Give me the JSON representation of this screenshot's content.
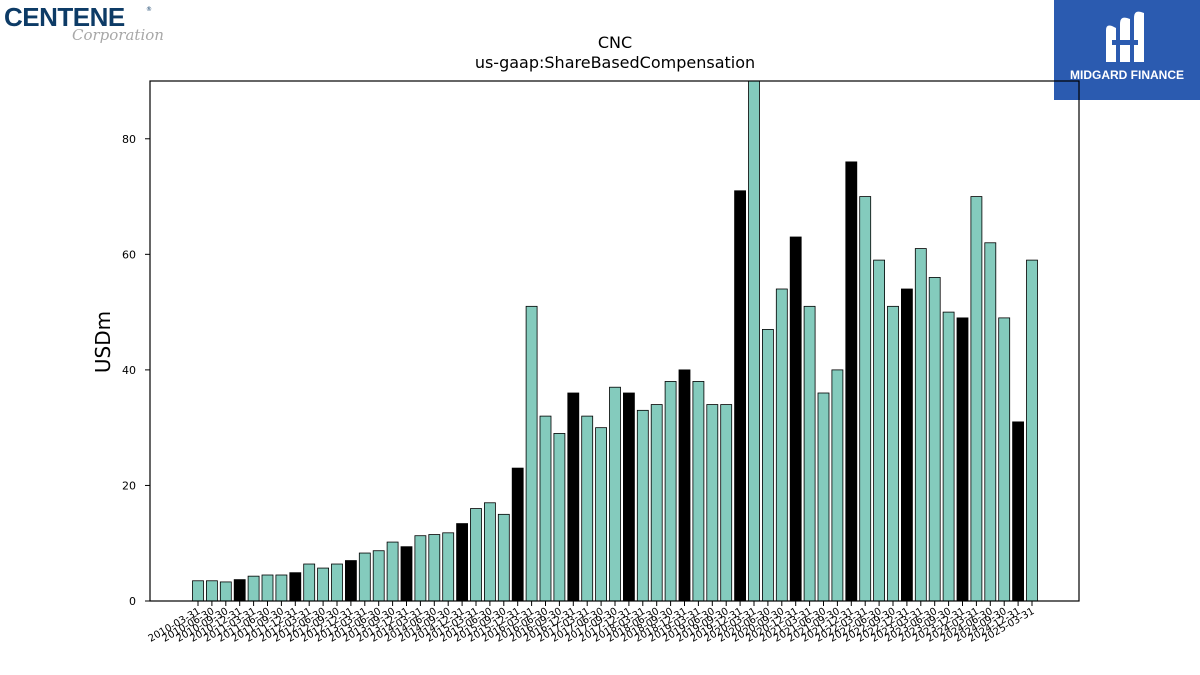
{
  "logos": {
    "left": {
      "brand": "CENTENE",
      "registered": "®",
      "sub": "Corporation"
    },
    "right": {
      "brand": "MIDGARD FINANCE",
      "icon": "midgard-monogram-icon"
    }
  },
  "chart_data": {
    "type": "bar",
    "title": "CNC",
    "subtitle": "us-gaap:ShareBasedCompensation",
    "ylabel": "USDm",
    "xlabel": "",
    "ylim": [
      0,
      90
    ],
    "yticks": [
      0,
      20,
      40,
      60,
      80
    ],
    "grid": false,
    "colors": {
      "default": "#84cbbd",
      "highlight": "#000000",
      "edge": "#000000"
    },
    "categories": [
      "2010-03-31",
      "2010-06-30",
      "2010-09-30",
      "2010-12-31",
      "2011-03-31",
      "2011-06-30",
      "2011-09-30",
      "2011-12-31",
      "2012-03-31",
      "2012-06-30",
      "2012-09-30",
      "2012-12-31",
      "2013-03-31",
      "2013-06-30",
      "2013-09-30",
      "2013-12-31",
      "2014-03-31",
      "2014-06-30",
      "2014-09-30",
      "2014-12-31",
      "2015-03-31",
      "2015-06-30",
      "2015-09-30",
      "2015-12-31",
      "2016-03-31",
      "2016-06-30",
      "2016-09-30",
      "2016-12-31",
      "2017-03-31",
      "2017-06-30",
      "2017-09-30",
      "2017-12-31",
      "2018-03-31",
      "2018-06-30",
      "2018-09-30",
      "2018-12-31",
      "2019-03-31",
      "2019-06-30",
      "2019-09-30",
      "2019-12-31",
      "2020-03-31",
      "2020-06-30",
      "2020-09-30",
      "2020-12-31",
      "2021-03-31",
      "2021-06-30",
      "2021-09-30",
      "2021-12-31",
      "2022-03-31",
      "2022-06-30",
      "2022-09-30",
      "2022-12-31",
      "2023-03-31",
      "2023-06-30",
      "2023-09-30",
      "2023-12-31",
      "2024-03-31",
      "2024-06-30",
      "2024-09-30",
      "2024-12-31",
      "2025-03-31"
    ],
    "values": [
      3.5,
      3.5,
      3.3,
      3.7,
      4.3,
      4.5,
      4.5,
      4.9,
      6.4,
      5.7,
      6.4,
      7.0,
      8.3,
      8.7,
      10.2,
      9.4,
      11.3,
      11.5,
      11.8,
      13.4,
      16.0,
      17.0,
      15.0,
      23.0,
      51.0,
      32.0,
      29.0,
      36.0,
      32.0,
      30.0,
      37.0,
      36.0,
      33.0,
      34.0,
      38.0,
      40.0,
      38.0,
      34.0,
      34.0,
      71.0,
      91.0,
      47.0,
      54.0,
      63.0,
      51.0,
      36.0,
      40.0,
      76.0,
      70.0,
      59.0,
      51.0,
      54.0,
      61.0,
      56.0,
      50.0,
      49.0,
      70.0,
      62.0,
      49.0,
      31.0,
      59.0
    ],
    "highlight": [
      false,
      false,
      false,
      true,
      false,
      false,
      false,
      true,
      false,
      false,
      false,
      true,
      false,
      false,
      false,
      true,
      false,
      false,
      false,
      true,
      false,
      false,
      false,
      true,
      false,
      false,
      false,
      true,
      false,
      false,
      false,
      true,
      false,
      false,
      false,
      true,
      false,
      false,
      false,
      true,
      false,
      false,
      false,
      true,
      false,
      false,
      false,
      true,
      false,
      false,
      false,
      true,
      false,
      false,
      false,
      true,
      false,
      false,
      false,
      true,
      false
    ]
  }
}
